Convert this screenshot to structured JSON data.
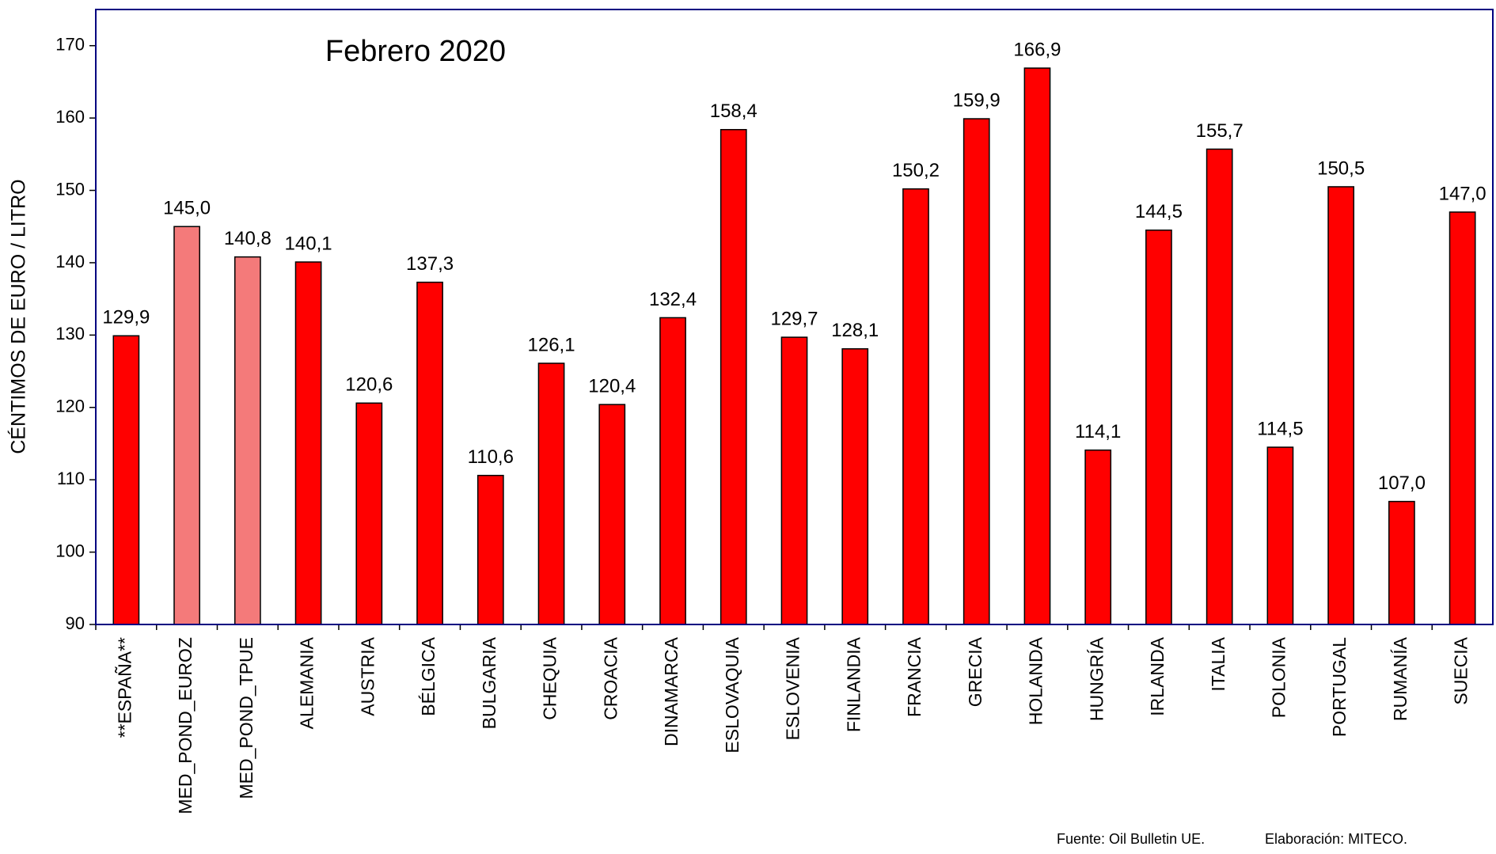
{
  "chart_data": {
    "type": "bar",
    "title": "Febrero 2020",
    "y_label": "CÉNTIMOS DE EURO / LITRO",
    "source": "Fuente: Oil Bulletin UE.",
    "credit": "Elaboración: MITECO.",
    "categories": [
      "**ESPAÑA**",
      "MED_POND_EUROZ",
      "MED_POND_TPUE",
      "ALEMANIA",
      "AUSTRIA",
      "BÉLGICA",
      "BULGARIA",
      "CHEQUIA",
      "CROACIA",
      "DINAMARCA",
      "ESLOVAQUIA",
      "ESLOVENIA",
      "FINLANDIA",
      "FRANCIA",
      "GRECIA",
      "HOLANDA",
      "HUNGRÍA",
      "IRLANDA",
      "ITALIA",
      "POLONIA",
      "PORTUGAL",
      "RUMANÍA",
      "SUECIA"
    ],
    "values": [
      129.9,
      145.0,
      140.8,
      140.1,
      120.6,
      137.3,
      110.6,
      126.1,
      120.4,
      132.4,
      158.4,
      129.7,
      128.1,
      150.2,
      159.9,
      166.9,
      114.1,
      144.5,
      155.7,
      114.5,
      150.5,
      107.0,
      147.0
    ],
    "value_labels": [
      "129,9",
      "145,0",
      "140,8",
      "140,1",
      "120,6",
      "137,3",
      "110,6",
      "126,1",
      "120,4",
      "132,4",
      "158,4",
      "129,7",
      "128,1",
      "150,2",
      "159,9",
      "166,9",
      "114,1",
      "144,5",
      "155,7",
      "114,5",
      "150,5",
      "107,0",
      "147,0"
    ],
    "colors": [
      "#ff0000",
      "#f47a7a",
      "#f47a7a",
      "#ff0000",
      "#ff0000",
      "#ff0000",
      "#ff0000",
      "#ff0000",
      "#ff0000",
      "#ff0000",
      "#ff0000",
      "#ff0000",
      "#ff0000",
      "#ff0000",
      "#ff0000",
      "#ff0000",
      "#ff0000",
      "#ff0000",
      "#ff0000",
      "#ff0000",
      "#ff0000",
      "#ff0000",
      "#ff0000"
    ],
    "ylim": [
      90,
      175
    ],
    "yticks": [
      90,
      100,
      110,
      120,
      130,
      140,
      150,
      160,
      170
    ],
    "grid": false
  }
}
